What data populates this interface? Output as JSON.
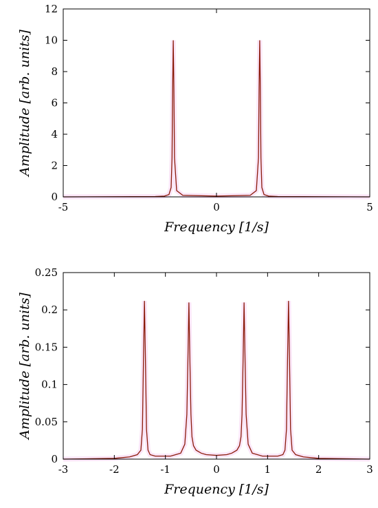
{
  "chart_data": [
    {
      "type": "line",
      "xlabel": "Frequency [1/s]",
      "ylabel": "Amplitude [arb. units]",
      "xlim": [
        -5,
        5
      ],
      "ylim": [
        0,
        12
      ],
      "xticks": [
        -5,
        0,
        5
      ],
      "yticks": [
        0,
        2,
        4,
        6,
        8,
        10,
        12
      ],
      "xtick_labels": [
        "-5",
        "0",
        "5"
      ],
      "ytick_labels": [
        "0",
        "2",
        "4",
        "6",
        "8",
        "10",
        "12"
      ],
      "grid": false,
      "series": [
        {
          "x": [
            -5,
            -2,
            -1.7,
            -1.55,
            -1.48,
            -1.45,
            -1.43,
            -1.41,
            -1.39,
            -1.37,
            -1.3,
            -1.1,
            0,
            1.1,
            1.3,
            1.37,
            1.39,
            1.41,
            1.43,
            1.45,
            1.48,
            1.55,
            1.7,
            2,
            5
          ],
          "y": [
            0,
            0.02,
            0.05,
            0.15,
            0.6,
            2.5,
            7,
            10,
            7,
            2.5,
            0.4,
            0.1,
            0.05,
            0.1,
            0.4,
            2.5,
            7,
            10,
            7,
            2.5,
            0.6,
            0.15,
            0.05,
            0.02,
            0
          ]
        }
      ]
    },
    {
      "type": "line",
      "xlabel": "Frequency [1/s]",
      "ylabel": "Amplitude [arb. units]",
      "xlim": [
        -3,
        3
      ],
      "ylim": [
        0,
        0.25
      ],
      "xticks": [
        -3,
        -2,
        -1,
        0,
        1,
        2,
        3
      ],
      "yticks": [
        0,
        0.05,
        0.1,
        0.15,
        0.2,
        0.25
      ],
      "xtick_labels": [
        "-3",
        "-2",
        "-1",
        "0",
        "1",
        "2",
        "3"
      ],
      "ytick_labels": [
        "0",
        "0.05",
        "0.1",
        "0.15",
        "0.2",
        "0.25"
      ],
      "grid": false,
      "series": [
        {
          "x": [
            -3,
            -2,
            -1.7,
            -1.55,
            -1.48,
            -1.45,
            -1.43,
            -1.41,
            -1.39,
            -1.37,
            -1.34,
            -1.3,
            -1.2,
            -0.9,
            -0.7,
            -0.62,
            -0.58,
            -0.56,
            -0.54,
            -0.52,
            -0.5,
            -0.48,
            -0.45,
            -0.4,
            -0.3,
            -0.2,
            0,
            0.2,
            0.3,
            0.4,
            0.45,
            0.48,
            0.5,
            0.52,
            0.54,
            0.56,
            0.58,
            0.62,
            0.7,
            0.9,
            1.2,
            1.3,
            1.34,
            1.37,
            1.39,
            1.41,
            1.43,
            1.45,
            1.48,
            1.55,
            1.7,
            2,
            3
          ],
          "y": [
            0,
            0.001,
            0.003,
            0.006,
            0.012,
            0.04,
            0.13,
            0.212,
            0.13,
            0.04,
            0.012,
            0.006,
            0.004,
            0.004,
            0.008,
            0.02,
            0.06,
            0.13,
            0.21,
            0.13,
            0.06,
            0.03,
            0.018,
            0.012,
            0.008,
            0.006,
            0.005,
            0.006,
            0.008,
            0.012,
            0.018,
            0.03,
            0.06,
            0.13,
            0.21,
            0.13,
            0.06,
            0.02,
            0.008,
            0.004,
            0.004,
            0.006,
            0.012,
            0.04,
            0.13,
            0.212,
            0.13,
            0.04,
            0.012,
            0.006,
            0.003,
            0.001,
            0
          ]
        }
      ]
    }
  ]
}
